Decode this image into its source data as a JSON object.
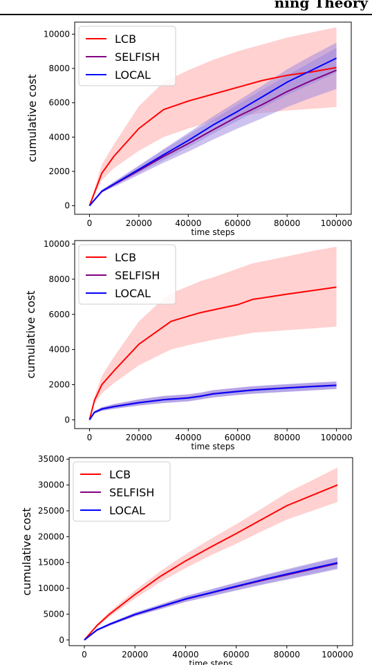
{
  "header": {
    "text": "ning Theory"
  },
  "colors": {
    "LCB": "#ff0000",
    "LCB_band": "#ff9a9a",
    "SELFISH": "#800080",
    "LOCAL": "#0000ff",
    "band_purple": "#9b86e0"
  },
  "chart_data": [
    {
      "type": "line",
      "xlabel": "time steps",
      "ylabel": "cumulative cost",
      "xlim": [
        -6000,
        106000
      ],
      "ylim": [
        -500,
        10700
      ],
      "xticks": [
        0,
        20000,
        40000,
        60000,
        80000,
        100000
      ],
      "xtick_labels": [
        "0",
        "20000",
        "40000",
        "60000",
        "80000",
        "100000"
      ],
      "yticks": [
        0,
        2000,
        4000,
        6000,
        8000,
        10000
      ],
      "ytick_labels": [
        "0",
        "2000",
        "4000",
        "6000",
        "8000",
        "10000"
      ],
      "legend_position": "upper-left",
      "x": [
        0,
        5000,
        10000,
        20000,
        30000,
        40000,
        50000,
        60000,
        70000,
        80000,
        90000,
        100000
      ],
      "series": [
        {
          "name": "LCB",
          "color": "#ff0000",
          "values": [
            0,
            1900,
            2900,
            4500,
            5600,
            6100,
            6500,
            6900,
            7300,
            7600,
            7800,
            8050
          ],
          "lower": [
            0,
            1500,
            2200,
            3200,
            4000,
            4500,
            4900,
            5200,
            5400,
            5550,
            5650,
            5750
          ],
          "upper": [
            0,
            2400,
            3600,
            5800,
            7200,
            7900,
            8500,
            9000,
            9400,
            9800,
            10100,
            10400
          ]
        },
        {
          "name": "SELFISH",
          "color": "#800080",
          "values": [
            0,
            830,
            1240,
            2050,
            2870,
            3620,
            4420,
            5200,
            5900,
            6650,
            7300,
            7900
          ],
          "lower": [
            0,
            760,
            1100,
            1800,
            2500,
            3150,
            3850,
            4500,
            5100,
            5750,
            6300,
            6800
          ],
          "upper": [
            0,
            900,
            1400,
            2300,
            3250,
            4150,
            5000,
            5900,
            6750,
            7600,
            8400,
            9200
          ]
        },
        {
          "name": "LOCAL",
          "color": "#0000ff",
          "values": [
            0,
            850,
            1270,
            2120,
            2970,
            3800,
            4700,
            5500,
            6350,
            7200,
            7900,
            8600
          ],
          "lower": [
            0,
            780,
            1150,
            1900,
            2650,
            3400,
            4200,
            4950,
            5700,
            6450,
            7100,
            7750
          ],
          "upper": [
            0,
            920,
            1400,
            2350,
            3300,
            4250,
            5200,
            6100,
            7000,
            7950,
            8750,
            9500
          ]
        }
      ]
    },
    {
      "type": "line",
      "xlabel": "time steps",
      "ylabel": "cumulative cost",
      "xlim": [
        -6000,
        106000
      ],
      "ylim": [
        -500,
        10200
      ],
      "xticks": [
        0,
        20000,
        40000,
        60000,
        80000,
        100000
      ],
      "xtick_labels": [
        "0",
        "20000",
        "40000",
        "60000",
        "80000",
        "100000"
      ],
      "yticks": [
        0,
        2000,
        4000,
        6000,
        8000,
        10000
      ],
      "ytick_labels": [
        "0",
        "2000",
        "4000",
        "6000",
        "8000",
        "10000"
      ],
      "legend_position": "upper-left",
      "x": [
        0,
        2000,
        5000,
        10000,
        20000,
        30000,
        33000,
        40000,
        45000,
        50000,
        60000,
        66000,
        80000,
        90000,
        100000
      ],
      "series": [
        {
          "name": "LCB",
          "color": "#ff0000",
          "values": [
            0,
            1100,
            2000,
            2800,
            4300,
            5300,
            5600,
            5900,
            6100,
            6250,
            6550,
            6850,
            7150,
            7350,
            7550
          ],
          "lower": [
            0,
            900,
            1500,
            2100,
            3100,
            3800,
            4000,
            4250,
            4400,
            4550,
            4800,
            4950,
            5100,
            5200,
            5300
          ],
          "upper": [
            0,
            1300,
            2500,
            3600,
            5600,
            6900,
            7200,
            7600,
            7900,
            8100,
            8600,
            8900,
            9300,
            9600,
            9850
          ]
        },
        {
          "name": "SELFISH",
          "color": "#800080",
          "values": [
            0,
            430,
            620,
            760,
            980,
            1150,
            1180,
            1250,
            1350,
            1480,
            1620,
            1700,
            1820,
            1900,
            1970
          ],
          "lower": [
            0,
            360,
            520,
            630,
            820,
            960,
            990,
            1060,
            1160,
            1280,
            1420,
            1490,
            1600,
            1680,
            1760
          ],
          "upper": [
            0,
            500,
            720,
            900,
            1160,
            1360,
            1390,
            1450,
            1550,
            1690,
            1830,
            1910,
            2030,
            2110,
            2180
          ]
        },
        {
          "name": "LOCAL",
          "color": "#0000ff",
          "values": [
            0,
            420,
            610,
            750,
            970,
            1140,
            1170,
            1240,
            1340,
            1470,
            1610,
            1690,
            1810,
            1890,
            1960
          ],
          "lower": [
            0,
            350,
            510,
            620,
            810,
            950,
            980,
            1050,
            1150,
            1270,
            1410,
            1480,
            1590,
            1670,
            1750
          ],
          "upper": [
            0,
            490,
            710,
            890,
            1150,
            1350,
            1380,
            1440,
            1540,
            1680,
            1820,
            1900,
            2020,
            2100,
            2170
          ]
        }
      ]
    },
    {
      "type": "line",
      "xlabel": "time steps",
      "ylabel": "cumulative cost",
      "xlim": [
        -6000,
        106000
      ],
      "ylim": [
        -1100,
        35300
      ],
      "xticks": [
        0,
        20000,
        40000,
        60000,
        80000,
        100000
      ],
      "xtick_labels": [
        "0",
        "20000",
        "40000",
        "60000",
        "80000",
        "100000"
      ],
      "yticks": [
        0,
        5000,
        10000,
        15000,
        20000,
        25000,
        30000,
        35000
      ],
      "ytick_labels": [
        "0",
        "5000",
        "10000",
        "15000",
        "20000",
        "25000",
        "30000",
        "35000"
      ],
      "legend_position": "upper-left",
      "x": [
        0,
        5000,
        10000,
        20000,
        30000,
        40000,
        50000,
        60000,
        70000,
        80000,
        90000,
        100000
      ],
      "series": [
        {
          "name": "LCB",
          "color": "#ff0000",
          "values": [
            0,
            2800,
            5000,
            8800,
            12300,
            15300,
            18000,
            20600,
            23300,
            26000,
            28000,
            30000
          ],
          "lower": [
            0,
            2500,
            4500,
            8000,
            11200,
            13900,
            16400,
            18600,
            21000,
            23300,
            25000,
            26700
          ],
          "upper": [
            0,
            3100,
            5500,
            9600,
            13300,
            16600,
            19600,
            22400,
            25400,
            28500,
            30900,
            33400
          ]
        },
        {
          "name": "SELFISH",
          "color": "#800080",
          "values": [
            0,
            1900,
            3000,
            4900,
            6400,
            7900,
            9100,
            10300,
            11500,
            12600,
            13700,
            14800
          ],
          "lower": [
            0,
            1750,
            2750,
            4550,
            5950,
            7350,
            8450,
            9550,
            10650,
            11650,
            12650,
            13700
          ],
          "upper": [
            0,
            2050,
            3250,
            5250,
            6850,
            8450,
            9750,
            11050,
            12350,
            13550,
            14750,
            15900
          ]
        },
        {
          "name": "LOCAL",
          "color": "#0000ff",
          "values": [
            0,
            1950,
            3050,
            4950,
            6450,
            7950,
            9150,
            10400,
            11600,
            12750,
            13850,
            14950
          ],
          "lower": [
            0,
            1800,
            2800,
            4600,
            6000,
            7400,
            8500,
            9650,
            10750,
            11800,
            12800,
            13850
          ],
          "upper": [
            0,
            2100,
            3300,
            5300,
            6900,
            8500,
            9800,
            11150,
            12450,
            13700,
            14900,
            16050
          ]
        }
      ]
    }
  ]
}
